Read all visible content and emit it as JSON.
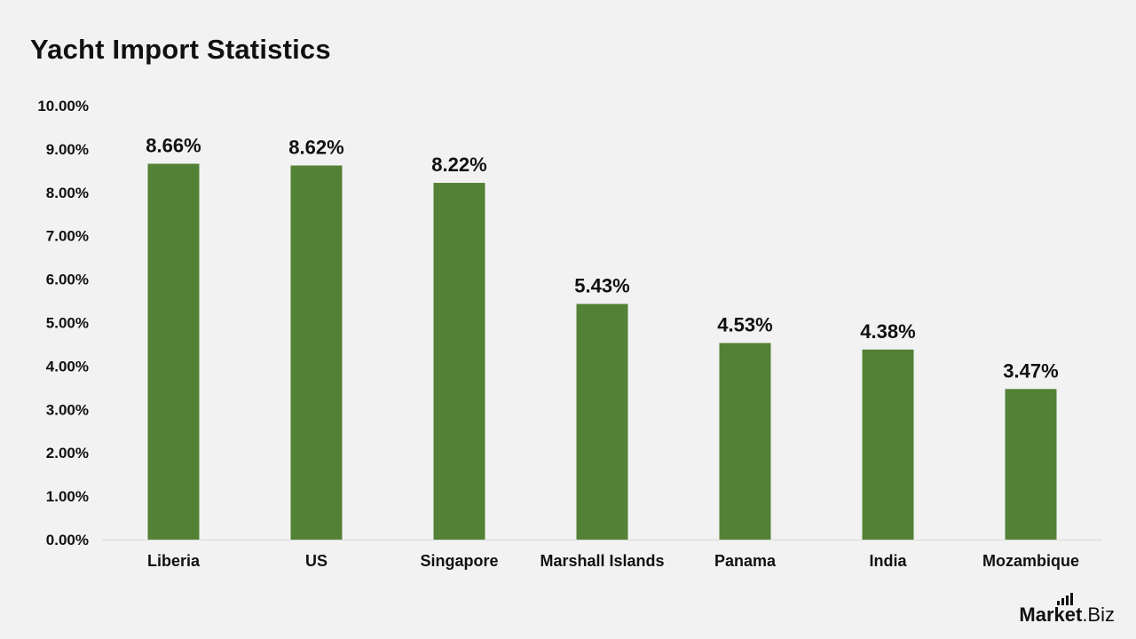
{
  "chart_data": {
    "type": "bar",
    "title": "Yacht Import Statistics",
    "categories": [
      "Liberia",
      "US",
      "Singapore",
      "Marshall Islands",
      "Panama",
      "India",
      "Mozambique"
    ],
    "values": [
      8.66,
      8.62,
      8.22,
      5.43,
      4.53,
      4.38,
      3.47
    ],
    "data_labels": [
      "8.66%",
      "8.62%",
      "8.22%",
      "5.43%",
      "4.53%",
      "4.38%",
      "3.47%"
    ],
    "yticks": [
      "0.00%",
      "1.00%",
      "2.00%",
      "3.00%",
      "4.00%",
      "5.00%",
      "6.00%",
      "7.00%",
      "8.00%",
      "9.00%",
      "10.00%"
    ],
    "ylim": [
      0,
      10
    ],
    "bar_color": "#538135",
    "grid": false,
    "legend": "none"
  },
  "brand": {
    "part1": "Market",
    "part2": ".Biz"
  }
}
